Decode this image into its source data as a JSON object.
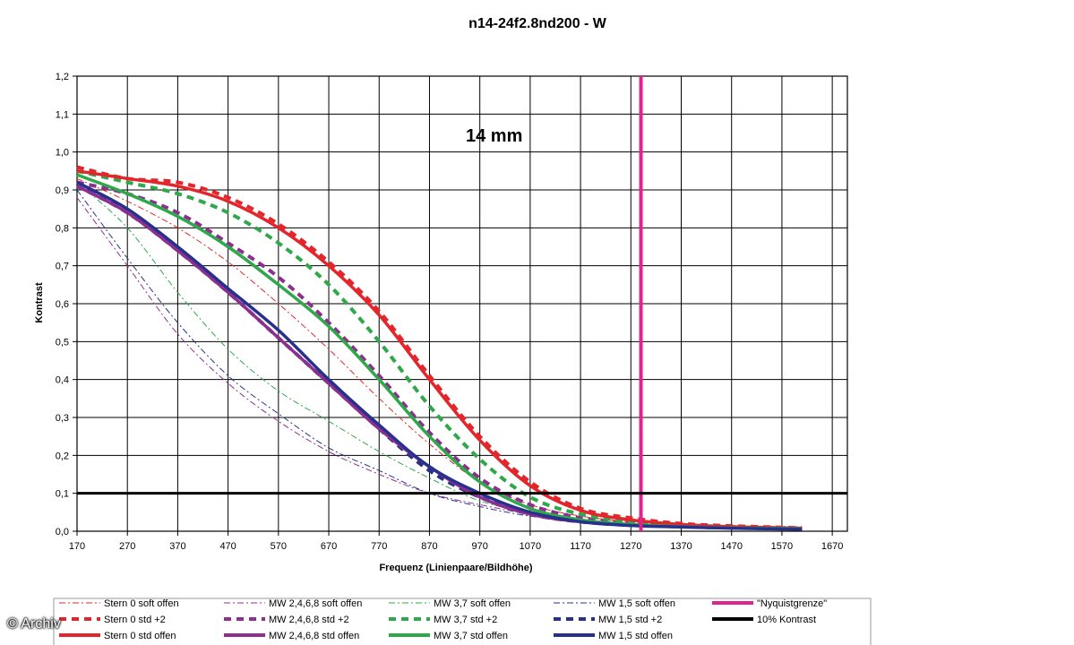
{
  "chart_data": {
    "type": "line",
    "title": "n14-24f2.8nd200 - W",
    "annotation": "14 mm",
    "xlabel": "Frequenz (Linienpaare/Bildhöhe)",
    "ylabel": "Kontrast",
    "xlim": [
      170,
      1700
    ],
    "ylim": [
      0,
      1.2
    ],
    "x_ticks": [
      170,
      270,
      370,
      470,
      570,
      670,
      770,
      870,
      970,
      1070,
      1170,
      1270,
      1370,
      1470,
      1570,
      1670
    ],
    "y_ticks": [
      "0,0",
      "0,1",
      "0,2",
      "0,3",
      "0,4",
      "0,5",
      "0,6",
      "0,7",
      "0,8",
      "0,9",
      "1,0",
      "1,1",
      "1,2"
    ],
    "grid": true,
    "legend_position": "bottom",
    "x": [
      170,
      270,
      370,
      470,
      570,
      670,
      770,
      870,
      970,
      1070,
      1170,
      1270,
      1370,
      1470,
      1570,
      1610
    ],
    "series": [
      {
        "name": "Stern 0 soft offen",
        "color": "#e3262b",
        "style": "dashdot",
        "values": [
          0.93,
          0.87,
          0.8,
          0.71,
          0.6,
          0.48,
          0.35,
          0.23,
          0.13,
          0.07,
          0.04,
          0.025,
          0.017,
          0.012,
          0.009,
          0.008
        ]
      },
      {
        "name": "MW 2,4,6,8 soft offen",
        "color": "#8e2f8f",
        "style": "dashdot",
        "values": [
          0.88,
          0.7,
          0.52,
          0.39,
          0.29,
          0.21,
          0.15,
          0.1,
          0.07,
          0.045,
          0.03,
          0.02,
          0.015,
          0.01,
          0.008,
          0.007
        ]
      },
      {
        "name": "MW 3,7 soft offen",
        "color": "#2ea84a",
        "style": "dashdot",
        "values": [
          0.92,
          0.8,
          0.63,
          0.48,
          0.37,
          0.29,
          0.21,
          0.14,
          0.08,
          0.05,
          0.03,
          0.02,
          0.015,
          0.01,
          0.008,
          0.007
        ]
      },
      {
        "name": "MW 1,5 soft offen",
        "color": "#27318b",
        "style": "dashdot",
        "values": [
          0.9,
          0.72,
          0.55,
          0.41,
          0.31,
          0.22,
          0.16,
          0.1,
          0.065,
          0.04,
          0.028,
          0.02,
          0.014,
          0.01,
          0.008,
          0.007
        ]
      },
      {
        "name": "Stern 0 std +2",
        "color": "#e3262b",
        "style": "dash",
        "values": [
          0.96,
          0.93,
          0.92,
          0.88,
          0.81,
          0.71,
          0.58,
          0.41,
          0.25,
          0.13,
          0.06,
          0.035,
          0.02,
          0.014,
          0.01,
          0.009
        ]
      },
      {
        "name": "MW 2,4,6,8 std +2",
        "color": "#8e2f8f",
        "style": "dash",
        "values": [
          0.92,
          0.89,
          0.84,
          0.76,
          0.67,
          0.55,
          0.41,
          0.26,
          0.14,
          0.07,
          0.035,
          0.02,
          0.014,
          0.01,
          0.008,
          0.007
        ]
      },
      {
        "name": "MW 3,7 std +2",
        "color": "#2ea84a",
        "style": "dash",
        "values": [
          0.95,
          0.92,
          0.89,
          0.84,
          0.76,
          0.65,
          0.5,
          0.33,
          0.19,
          0.09,
          0.045,
          0.025,
          0.016,
          0.011,
          0.009,
          0.008
        ]
      },
      {
        "name": "MW 1,5 std +2",
        "color": "#27318b",
        "style": "dash",
        "values": [
          0.91,
          0.84,
          0.74,
          0.63,
          0.51,
          0.39,
          0.27,
          0.16,
          0.09,
          0.045,
          0.025,
          0.016,
          0.012,
          0.009,
          0.007,
          0.006
        ]
      },
      {
        "name": "Stern 0 std offen",
        "color": "#e3262b",
        "style": "solid",
        "values": [
          0.95,
          0.93,
          0.91,
          0.87,
          0.8,
          0.7,
          0.57,
          0.4,
          0.24,
          0.12,
          0.055,
          0.03,
          0.018,
          0.012,
          0.009,
          0.008
        ]
      },
      {
        "name": "MW 2,4,6,8 std offen",
        "color": "#8e2f8f",
        "style": "solid",
        "values": [
          0.91,
          0.84,
          0.74,
          0.63,
          0.51,
          0.39,
          0.27,
          0.17,
          0.09,
          0.045,
          0.025,
          0.016,
          0.012,
          0.009,
          0.007,
          0.006
        ]
      },
      {
        "name": "MW 3,7 std offen",
        "color": "#2ea84a",
        "style": "solid",
        "values": [
          0.94,
          0.89,
          0.83,
          0.75,
          0.65,
          0.54,
          0.4,
          0.25,
          0.13,
          0.06,
          0.03,
          0.018,
          0.012,
          0.009,
          0.007,
          0.006
        ]
      },
      {
        "name": "MW 1,5 std offen",
        "color": "#27318b",
        "style": "solid",
        "values": [
          0.92,
          0.85,
          0.75,
          0.64,
          0.53,
          0.4,
          0.28,
          0.17,
          0.1,
          0.05,
          0.025,
          0.015,
          0.011,
          0.008,
          0.006,
          0.005
        ]
      }
    ],
    "reference_lines": [
      {
        "name": "\"Nyquistgrenze\"",
        "color": "#e0238f",
        "orientation": "vertical",
        "x": 1290
      },
      {
        "name": "10% Kontrast",
        "color": "#000000",
        "orientation": "horizontal",
        "y": 0.1
      }
    ]
  },
  "watermark": "© Archiv"
}
